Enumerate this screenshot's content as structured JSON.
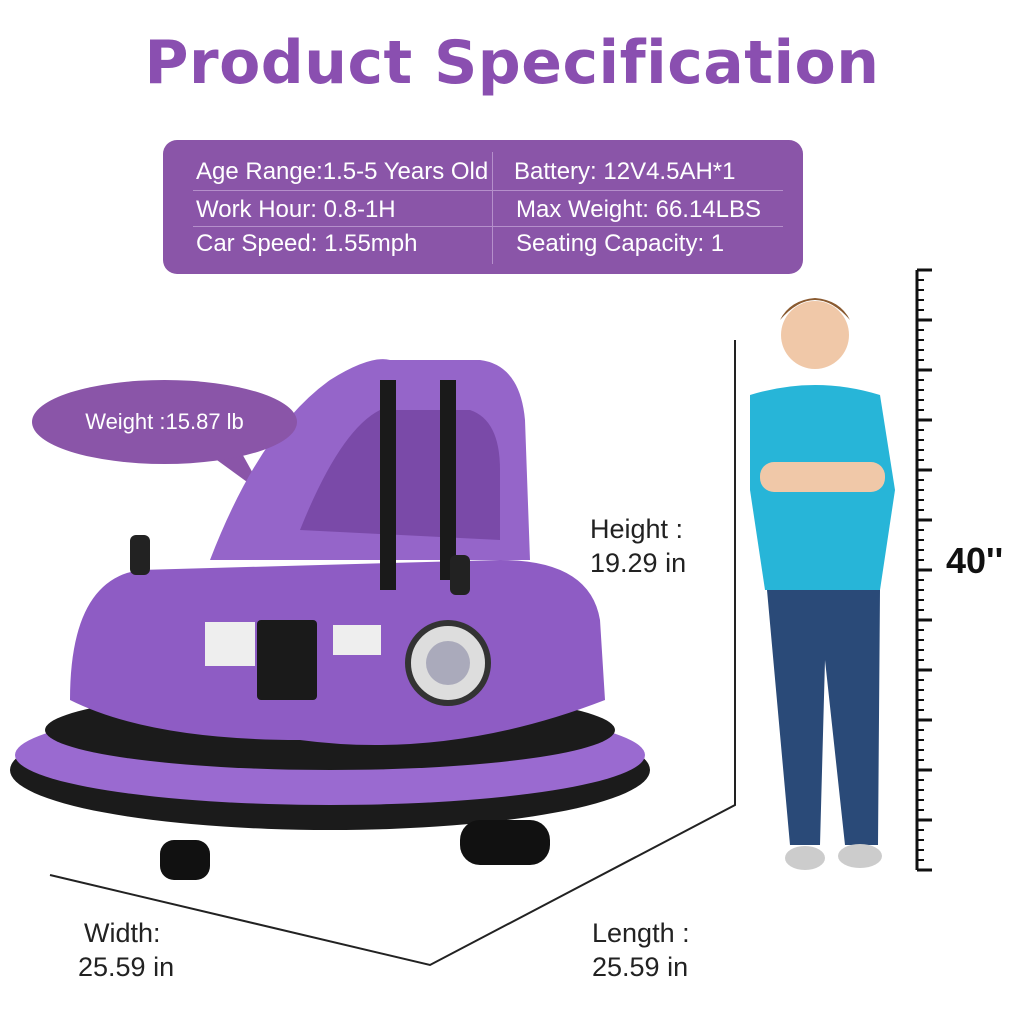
{
  "title": "Product Specification",
  "specs": [
    {
      "label": "Age Range:",
      "value": "1.5-5 Years Old"
    },
    {
      "label": "Battery:",
      "value": "12V4.5AH*1"
    },
    {
      "label": "Work Hour:",
      "value": "0.8-1H"
    },
    {
      "label": "Max Weight:",
      "value": "66.14LBS"
    },
    {
      "label": "Car Speed:",
      "value": "1.55mph"
    },
    {
      "label": "Seating Capacity:",
      "value": "1"
    }
  ],
  "weight_bubble": "Weight :15.87 lb",
  "dimensions": {
    "height_label": "Height :",
    "height_value": "19.29 in",
    "width_label": "Width:",
    "width_value": "25.59 in",
    "length_label": "Length :",
    "length_value": "25.59 in",
    "child_height": "40''"
  },
  "colors": {
    "accent": "#8a55a8",
    "car": "#8e5cc4",
    "shirt": "#27b5d8",
    "jeans": "#2a4a78"
  }
}
